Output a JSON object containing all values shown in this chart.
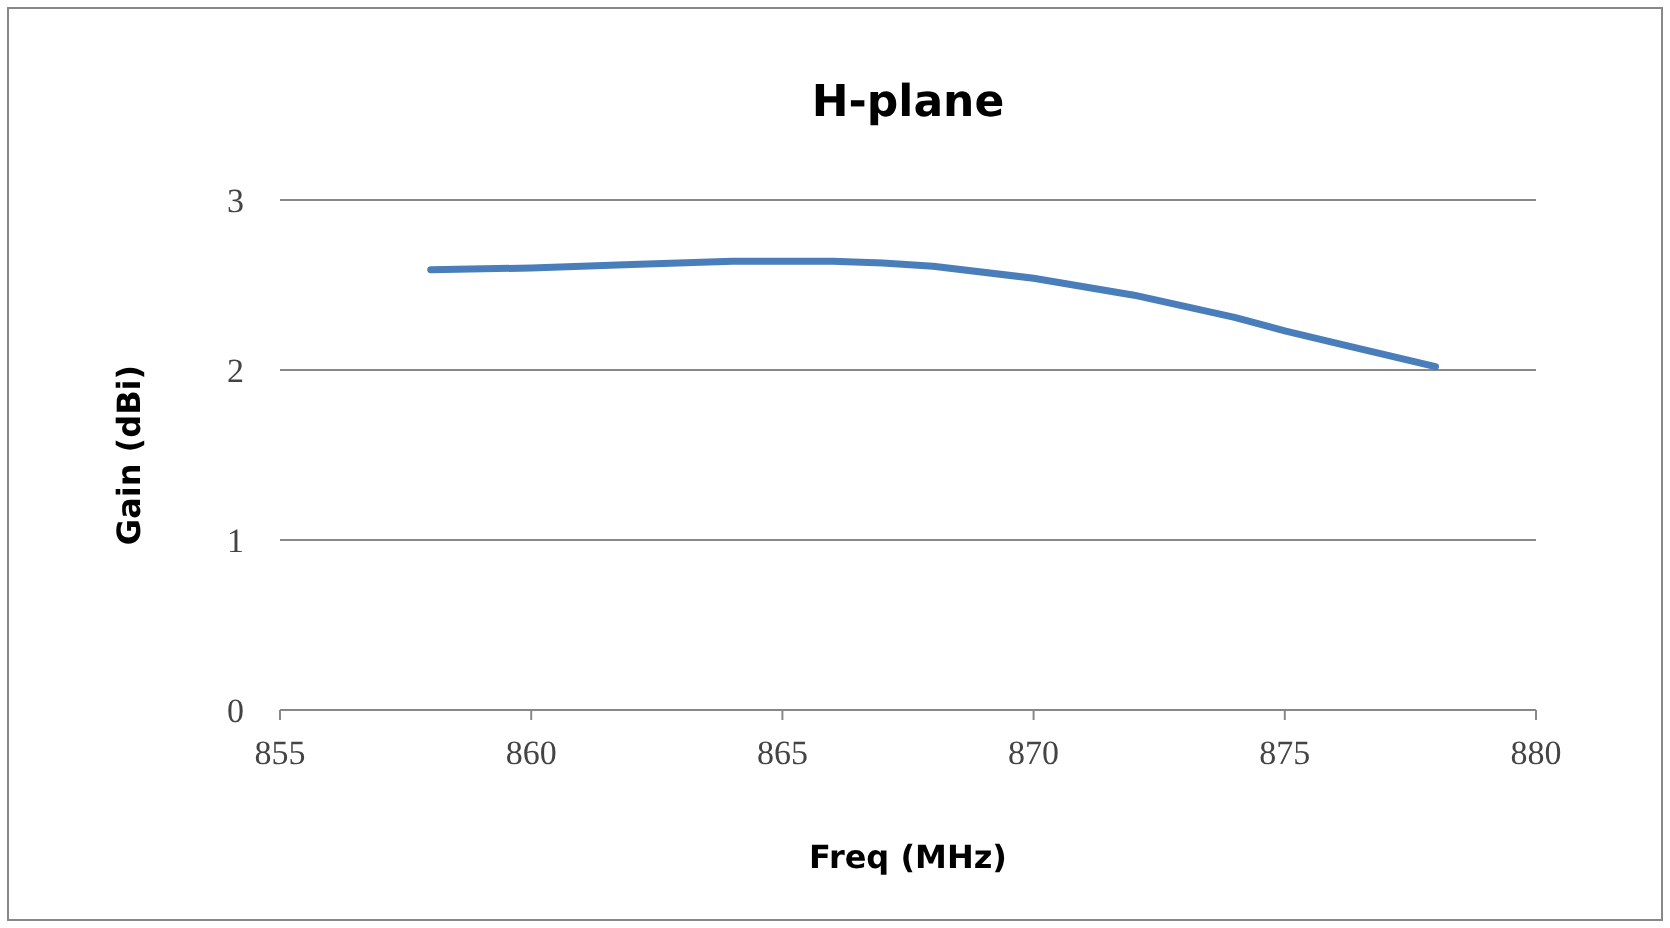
{
  "chart_data": {
    "type": "line",
    "title": "H-plane",
    "xlabel": "Freq (MHz)",
    "ylabel": "Gain (dBi)",
    "x": [
      858,
      860,
      862,
      864,
      866,
      867,
      868,
      870,
      872,
      874,
      875,
      876,
      878
    ],
    "series": [
      {
        "color": "#4a7ebb",
        "values": [
          2.59,
          2.6,
          2.62,
          2.64,
          2.64,
          2.63,
          2.61,
          2.54,
          2.44,
          2.31,
          2.23,
          2.16,
          2.02
        ]
      }
    ],
    "xlim": [
      855,
      880
    ],
    "xticks": [
      855,
      860,
      865,
      870,
      875,
      880
    ],
    "ylim": [
      0,
      3
    ],
    "yticks": [
      0,
      1,
      2,
      3
    ],
    "grid": "y",
    "marker": "none",
    "line_style": "solid"
  }
}
